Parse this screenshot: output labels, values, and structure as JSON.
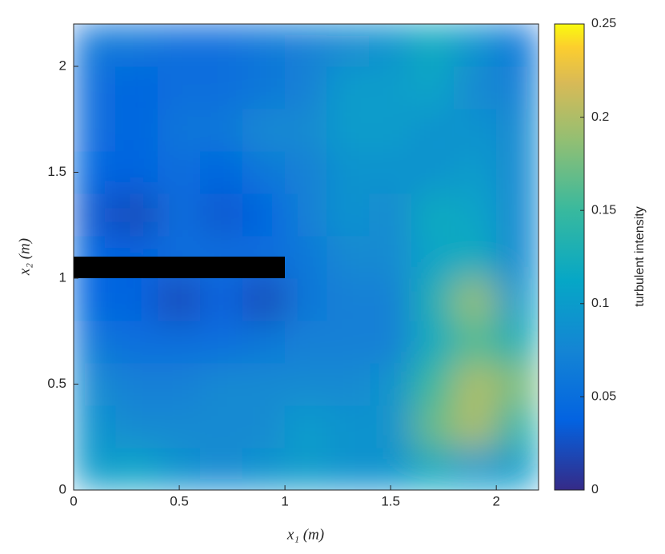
{
  "chart_data": {
    "type": "heatmap",
    "x_label": "x₁ (m)",
    "y_label": "x₂ (m)",
    "colorbar_label": "turbulent intensity",
    "colormap": "parula",
    "x": [
      0.1,
      0.3,
      0.5,
      0.7,
      0.9,
      1.1,
      1.3,
      1.5,
      1.7,
      1.9,
      2.1
    ],
    "y": [
      0.1,
      0.3,
      0.5,
      0.7,
      0.9,
      1.1,
      1.3,
      1.5,
      1.7,
      1.9,
      2.1
    ],
    "values": [
      [
        0.1,
        0.11,
        0.09,
        0.08,
        0.09,
        0.1,
        0.09,
        0.09,
        0.12,
        0.1,
        0.1
      ],
      [
        0.09,
        0.08,
        0.08,
        0.08,
        0.08,
        0.1,
        0.09,
        0.09,
        0.17,
        0.2,
        0.14
      ],
      [
        0.08,
        0.07,
        0.07,
        0.08,
        0.08,
        0.08,
        0.08,
        0.09,
        0.15,
        0.2,
        0.18
      ],
      [
        0.06,
        0.05,
        0.05,
        0.05,
        0.06,
        0.07,
        0.07,
        0.07,
        0.12,
        0.16,
        0.13
      ],
      [
        0.04,
        0.04,
        0.02,
        0.04,
        0.02,
        0.06,
        0.07,
        0.07,
        0.13,
        0.19,
        0.1
      ],
      [
        0.04,
        0.04,
        0.05,
        0.05,
        0.05,
        0.06,
        0.08,
        0.08,
        0.11,
        0.12,
        0.08
      ],
      [
        0.03,
        0.02,
        0.05,
        0.03,
        0.04,
        0.07,
        0.09,
        0.08,
        0.12,
        0.11,
        0.08
      ],
      [
        0.04,
        0.04,
        0.05,
        0.04,
        0.06,
        0.07,
        0.09,
        0.09,
        0.09,
        0.1,
        0.08
      ],
      [
        0.05,
        0.04,
        0.06,
        0.06,
        0.08,
        0.08,
        0.1,
        0.1,
        0.09,
        0.09,
        0.08
      ],
      [
        0.05,
        0.04,
        0.05,
        0.05,
        0.06,
        0.07,
        0.1,
        0.1,
        0.11,
        0.08,
        0.07
      ],
      [
        0.06,
        0.06,
        0.05,
        0.05,
        0.06,
        0.07,
        0.08,
        0.09,
        0.12,
        0.09,
        0.06
      ]
    ],
    "xlim": [
      0,
      2.2
    ],
    "ylim": [
      0,
      2.2
    ],
    "clim": [
      0,
      0.25
    ],
    "xticks": [
      0,
      0.5,
      1,
      1.5,
      2
    ],
    "yticks": [
      0,
      0.5,
      1,
      1.5,
      2
    ],
    "cticks": [
      0,
      0.05,
      0.1,
      0.15,
      0.2,
      0.25
    ]
  }
}
